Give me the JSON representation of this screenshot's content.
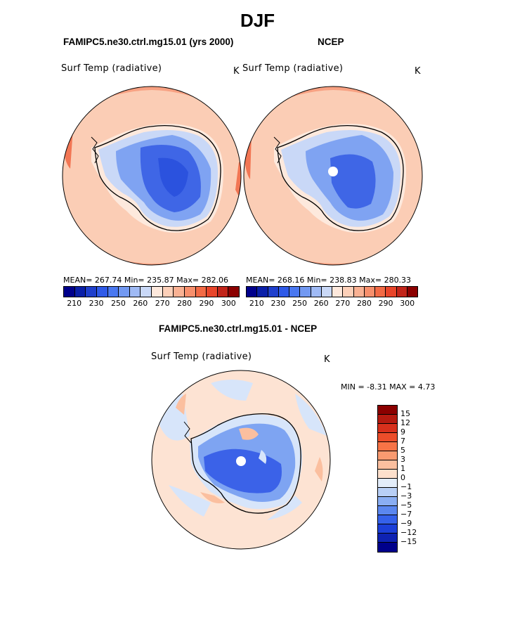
{
  "title": "DJF",
  "left_panel": {
    "header": "FAMIPC5.ne30.ctrl.mg15.01 (yrs 2000)",
    "variable": "Surf Temp (radiative)",
    "units": "K",
    "stats": "MEAN= 267.74   Min= 235.87   Max= 282.06",
    "mean": 267.74,
    "min": 235.87,
    "max": 282.06
  },
  "right_panel": {
    "header": "NCEP",
    "variable": "Surf Temp (radiative)",
    "units": "K",
    "stats": "MEAN= 268.16   Min= 238.83   Max= 280.33",
    "mean": 268.16,
    "min": 238.83,
    "max": 280.33
  },
  "diff_panel": {
    "header": "FAMIPC5.ne30.ctrl.mg15.01 - NCEP",
    "variable": "Surf Temp (radiative)",
    "units": "K",
    "minmax": "MIN =   -8.31  MAX =    4.73",
    "min": -8.31,
    "max": 4.73
  },
  "abs_colorbar": {
    "colors": [
      "#00008b",
      "#0a1fa8",
      "#1f3fcc",
      "#2f5ae8",
      "#4a78f0",
      "#7299f2",
      "#9fbaf5",
      "#c9d8f7",
      "#fde8dc",
      "#fcd0b9",
      "#f9b193",
      "#f78f6c",
      "#f26a45",
      "#e8452a",
      "#c2251a",
      "#8b0000"
    ],
    "tick_labels": [
      "210",
      "230",
      "250",
      "260",
      "270",
      "280",
      "290",
      "300"
    ]
  },
  "diff_colorbar": {
    "colors_top_to_bottom": [
      "#8b0000",
      "#b51a10",
      "#d8301c",
      "#ec4d2a",
      "#f77346",
      "#f99a70",
      "#fbbf9f",
      "#fde0cc",
      "#e3edfa",
      "#b8cff6",
      "#8aaef3",
      "#5b87ef",
      "#3561ea",
      "#1c3fd8",
      "#0e22b2",
      "#00008b"
    ],
    "tick_labels": [
      "15",
      "12",
      "9",
      "7",
      "5",
      "3",
      "1",
      "0",
      "−1",
      "−3",
      "−5",
      "−7",
      "−9",
      "−12",
      "−15"
    ]
  },
  "map_colors": {
    "ocean_warm": "#fbcdb5",
    "ocean_warmer": "#f7a182",
    "ocean_edge": "#f27654",
    "coast_pale": "#fde9dd",
    "ice_edge": "#c9d8f7",
    "ice_mid": "#7fa3f2",
    "ice_deep": "#3f66e6",
    "ice_core": "#2b52de",
    "diff_bg": "#fde3d3",
    "diff_pale_blue": "#d7e5fa",
    "diff_blue": "#7ea4f2",
    "diff_deep": "#3b62e8"
  }
}
